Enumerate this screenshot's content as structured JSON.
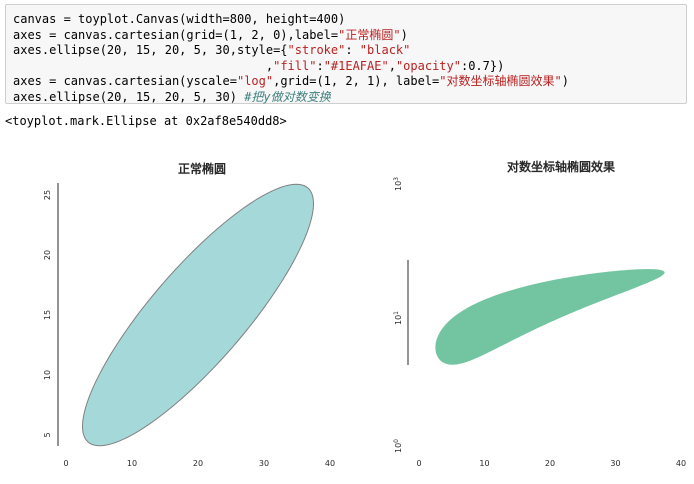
{
  "code": {
    "lines": [
      [
        {
          "t": "canvas = toyplot.Canvas(width=800, height=400)"
        }
      ],
      [
        {
          "t": "axes = canvas.cartesian(grid=(1, 2, 0),label="
        },
        {
          "t": "\"正常椭圆\"",
          "c": "str"
        },
        {
          "t": ")"
        }
      ],
      [
        {
          "t": "axes.ellipse(20, 15, 20, 5, 30,style={"
        },
        {
          "t": "\"stroke\"",
          "c": "str"
        },
        {
          "t": ": "
        },
        {
          "t": "\"black\"",
          "c": "str"
        }
      ],
      [
        {
          "t": "                                   ,"
        },
        {
          "t": "\"fill\"",
          "c": "str"
        },
        {
          "t": ":"
        },
        {
          "t": "\"#1EAFAE\"",
          "c": "str"
        },
        {
          "t": ","
        },
        {
          "t": "\"opacity\"",
          "c": "str"
        },
        {
          "t": ":0.7})"
        }
      ],
      [
        {
          "t": "axes = canvas.cartesian(yscale="
        },
        {
          "t": "\"log\"",
          "c": "str"
        },
        {
          "t": ",grid=(1, 2, 1), label="
        },
        {
          "t": "\"对数坐标轴椭圆效果\"",
          "c": "str"
        },
        {
          "t": ")"
        }
      ],
      [
        {
          "t": "axes.ellipse(20, 15, 20, 5, 30) "
        },
        {
          "t": "#把y做对数变换",
          "c": "com"
        }
      ]
    ]
  },
  "output_text": "<toyplot.mark.Ellipse at 0x2af8e540dd8>",
  "chart_data": [
    {
      "type": "ellipse",
      "title": "正常椭圆",
      "ellipse": {
        "x": 20,
        "y": 15,
        "rx": 20,
        "ry": 5,
        "angle": 30
      },
      "style": {
        "stroke": "#808080",
        "fill": "#a5d8d9"
      },
      "xticks": [
        "0",
        "10",
        "20",
        "30",
        "40"
      ],
      "yticks": [
        "5",
        "10",
        "15",
        "20",
        "25"
      ],
      "xlim": [
        0,
        40
      ],
      "ylim": [
        4,
        26
      ]
    },
    {
      "type": "ellipse",
      "title": "对数坐标轴椭圆效果",
      "yscale": "log",
      "ellipse": {
        "x": 20,
        "y": 15,
        "rx": 20,
        "ry": 5,
        "angle": 30
      },
      "style": {
        "stroke": "none",
        "fill": "#73c4a1"
      },
      "xticks": [
        "0",
        "10",
        "20",
        "30",
        "40"
      ],
      "yticks": [
        {
          "base": "10",
          "exp": "0"
        },
        {
          "base": "10",
          "exp": "1"
        },
        {
          "base": "10",
          "exp": "3"
        }
      ]
    }
  ]
}
